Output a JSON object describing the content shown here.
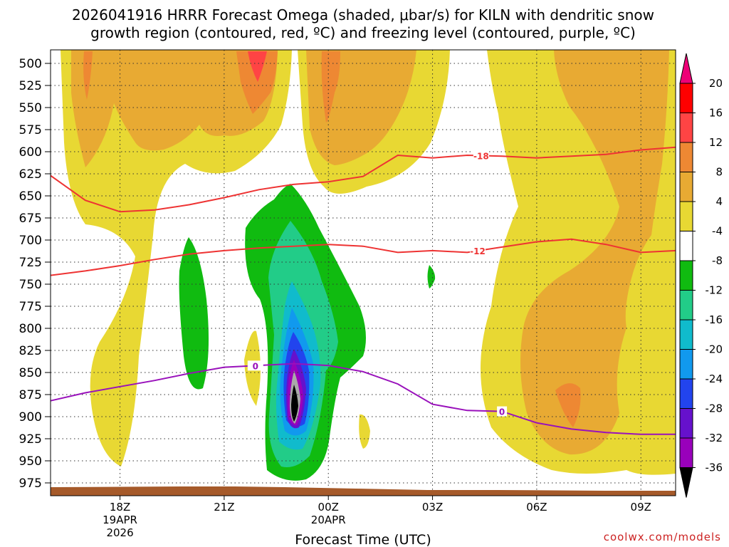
{
  "chart_data": {
    "type": "heatmap",
    "title_line1": "2026041916 HRRR Forecast Omega (shaded, μbar/s) for KILN with dendritic snow",
    "title_line2": "growth region (contoured, red, ºC) and freezing level (contoured, purple, ºC)",
    "xlabel": "Forecast Time (UTC)",
    "credit": "coolwx.com/models",
    "xlim_hours": [
      16,
      34
    ],
    "ylim_hPa": [
      985,
      490
    ],
    "pressure_levels": [
      500,
      525,
      550,
      575,
      600,
      625,
      650,
      675,
      700,
      725,
      750,
      775,
      800,
      825,
      850,
      875,
      900,
      925,
      950,
      975
    ],
    "x_ticks": [
      {
        "hour": 18,
        "label": "18Z",
        "date": "19APR",
        "year": "2026"
      },
      {
        "hour": 21,
        "label": "21Z"
      },
      {
        "hour": 24,
        "label": "00Z",
        "date": "20APR"
      },
      {
        "hour": 27,
        "label": "03Z"
      },
      {
        "hour": 30,
        "label": "06Z"
      },
      {
        "hour": 33,
        "label": "09Z"
      }
    ],
    "colorbar": {
      "labels": [
        "20",
        "16",
        "12",
        "8",
        "4",
        "-4",
        "-8",
        "-12",
        "-16",
        "-20",
        "-24",
        "-28",
        "-32",
        "-36"
      ],
      "colors": [
        "#ff0000",
        "#ff4444",
        "#ee8833",
        "#e8aa33",
        "#e8d833",
        "#ffffff",
        "#10bb10",
        "#22cc88",
        "#10bbcc",
        "#1199ee",
        "#2244ee",
        "#6611cc",
        "#9900bb",
        "#aaaaaa",
        "#000000"
      ],
      "top_arrow_color": "#ee0077"
    },
    "series": [
      {
        "name": "-18 isotherm",
        "label": "-18",
        "color": "#ee3333",
        "x": [
          16,
          17,
          18,
          19,
          20,
          21,
          22,
          23,
          24,
          25,
          26,
          27,
          28,
          29,
          30,
          31,
          32,
          33,
          34
        ],
        "p": [
          627,
          655,
          668,
          666,
          660,
          652,
          643,
          637,
          634,
          628,
          604,
          607,
          604,
          605,
          607,
          605,
          603,
          598,
          595
        ]
      },
      {
        "name": "-12 isotherm",
        "label": "-12",
        "color": "#ee3333",
        "x": [
          16,
          17,
          18,
          19,
          20,
          21,
          22,
          23,
          24,
          25,
          26,
          27,
          28,
          29,
          30,
          31,
          32,
          33,
          34
        ],
        "p": [
          740,
          735,
          729,
          722,
          716,
          712,
          709,
          707,
          705,
          707,
          714,
          712,
          714,
          708,
          702,
          699,
          705,
          714,
          712
        ]
      },
      {
        "name": "0 isotherm (freezing level)",
        "label": "0",
        "color": "#9911bb",
        "x": [
          16,
          17,
          18,
          19,
          20,
          21,
          22,
          23,
          24,
          25,
          26,
          27,
          28,
          29,
          30,
          31,
          32,
          33,
          34
        ],
        "p": [
          882,
          873,
          866,
          859,
          851,
          844,
          842,
          840,
          842,
          849,
          863,
          886,
          893,
          894,
          907,
          914,
          918,
          920,
          920
        ]
      }
    ]
  }
}
